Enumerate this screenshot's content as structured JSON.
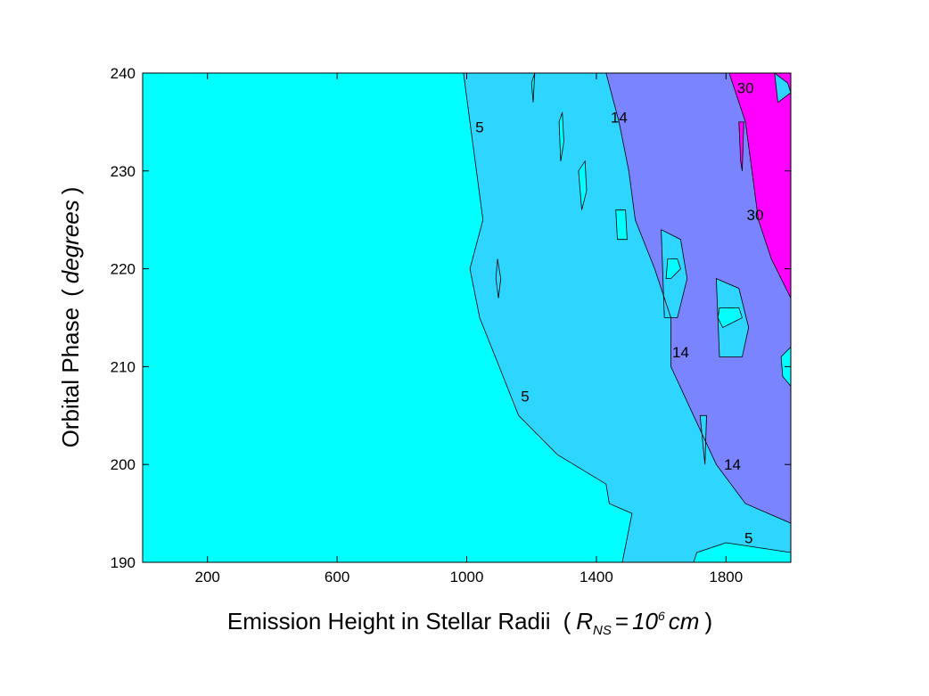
{
  "chart_data": {
    "type": "contour",
    "xlabel": {
      "main": "Emission Height in Stellar Radii",
      "paren_open": "(",
      "r_symbol": "R",
      "r_subscript": "NS",
      "equals": "=",
      "base": "10",
      "exponent": "6",
      "unit": "cm",
      "paren_close": ")"
    },
    "ylabel": {
      "main": "Orbital Phase",
      "paren_open": "(",
      "unit": "degrees",
      "paren_close": ")"
    },
    "xlim": [
      0,
      2000
    ],
    "ylim": [
      190,
      240
    ],
    "xticks": [
      200,
      600,
      1000,
      1400,
      1800
    ],
    "yticks": [
      190,
      200,
      210,
      220,
      230,
      240
    ],
    "grid": false,
    "colors": {
      "lt5": "#00ffff",
      "5to14": "#2dd5ff",
      "14to30": "#7a84ff",
      "gt30": "#ff00ff",
      "line": "#000000"
    },
    "regions": [
      {
        "level": "5to14",
        "points": [
          [
            1000,
            240
          ],
          [
            1520,
            240
          ],
          [
            1480,
            190
          ],
          [
            0,
            0
          ]
        ]
      },
      {
        "level": "14to30",
        "points": [
          [
            1450,
            240
          ],
          [
            2000,
            240
          ],
          [
            2000,
            194
          ],
          [
            1760,
            200
          ],
          [
            1620,
            215
          ],
          [
            1450,
            240
          ]
        ]
      },
      {
        "level": "gt30",
        "points": [
          [
            1830,
            240
          ],
          [
            2000,
            240
          ],
          [
            2000,
            217
          ],
          [
            1860,
            228
          ]
        ]
      }
    ],
    "boundaries": {
      "c5_main": [
        [
          990,
          240
        ],
        [
          1010,
          235
        ],
        [
          1030,
          230
        ],
        [
          1050,
          225
        ],
        [
          1010,
          220
        ],
        [
          1040,
          215
        ],
        [
          1100,
          210
        ],
        [
          1160,
          205
        ],
        [
          1280,
          201
        ],
        [
          1430,
          198
        ],
        [
          1440,
          196
        ],
        [
          1510,
          195
        ],
        [
          1480,
          190
        ]
      ],
      "c14_main": [
        [
          1430,
          240
        ],
        [
          1470,
          235
        ],
        [
          1500,
          230
        ],
        [
          1520,
          225
        ],
        [
          1580,
          220
        ],
        [
          1630,
          215
        ],
        [
          1630,
          210
        ],
        [
          1700,
          205
        ],
        [
          1770,
          200
        ],
        [
          1860,
          196
        ],
        [
          2000,
          194
        ]
      ],
      "c30_main": [
        [
          1810,
          240
        ],
        [
          1860,
          235
        ],
        [
          1880,
          230
        ],
        [
          1900,
          225
        ],
        [
          1940,
          221
        ],
        [
          2000,
          217
        ]
      ],
      "c5_bottom": [
        [
          1700,
          190
        ],
        [
          1710,
          191
        ],
        [
          1800,
          192
        ],
        [
          2000,
          191
        ]
      ]
    },
    "islands": [
      {
        "level": "5to14",
        "points": [
          [
            1095,
            221
          ],
          [
            1105,
            219
          ],
          [
            1098,
            217
          ],
          [
            1090,
            219
          ]
        ]
      },
      {
        "level": "lt5",
        "points": [
          [
            1200,
            239
          ],
          [
            1210,
            240
          ],
          [
            1205,
            237
          ]
        ]
      },
      {
        "level": "lt5",
        "points": [
          [
            1285,
            235
          ],
          [
            1295,
            236
          ],
          [
            1300,
            233
          ],
          [
            1290,
            231
          ]
        ]
      },
      {
        "level": "lt5",
        "points": [
          [
            1345,
            230
          ],
          [
            1365,
            231
          ],
          [
            1370,
            228
          ],
          [
            1355,
            226
          ]
        ]
      },
      {
        "level": "lt5",
        "points": [
          [
            1460,
            226
          ],
          [
            1490,
            226
          ],
          [
            1495,
            223
          ],
          [
            1465,
            223
          ]
        ]
      },
      {
        "level": "5to14",
        "points": [
          [
            1600,
            224
          ],
          [
            1660,
            223
          ],
          [
            1680,
            219
          ],
          [
            1650,
            215
          ],
          [
            1610,
            215
          ]
        ]
      },
      {
        "level": "lt5",
        "points": [
          [
            1620,
            221
          ],
          [
            1650,
            221
          ],
          [
            1660,
            220
          ],
          [
            1630,
            219
          ],
          [
            1615,
            219
          ]
        ]
      },
      {
        "level": "5to14",
        "points": [
          [
            1770,
            219
          ],
          [
            1840,
            218
          ],
          [
            1870,
            214
          ],
          [
            1850,
            211
          ],
          [
            1780,
            211
          ]
        ]
      },
      {
        "level": "lt5",
        "points": [
          [
            1780,
            216
          ],
          [
            1840,
            216
          ],
          [
            1850,
            215
          ],
          [
            1790,
            214
          ],
          [
            1775,
            215
          ]
        ]
      },
      {
        "level": "lt5",
        "points": [
          [
            1970,
            211
          ],
          [
            2000,
            212
          ],
          [
            2000,
            208
          ],
          [
            1975,
            209
          ]
        ]
      },
      {
        "level": "5to14",
        "points": [
          [
            1720,
            205
          ],
          [
            1740,
            205
          ],
          [
            1735,
            200
          ]
        ]
      },
      {
        "level": "gt30",
        "points": [
          [
            1840,
            235
          ],
          [
            1855,
            235
          ],
          [
            1850,
            230
          ],
          [
            1845,
            231
          ]
        ]
      },
      {
        "level": "5to14",
        "points": [
          [
            1950,
            240
          ],
          [
            1990,
            239
          ],
          [
            2000,
            238
          ],
          [
            1960,
            237
          ]
        ]
      }
    ],
    "labels": [
      {
        "text": "5",
        "x": 1040,
        "y": 234.5
      },
      {
        "text": "5",
        "x": 1180,
        "y": 207
      },
      {
        "text": "5",
        "x": 1870,
        "y": 192.5
      },
      {
        "text": "14",
        "x": 1470,
        "y": 235.5
      },
      {
        "text": "14",
        "x": 1660,
        "y": 211.5
      },
      {
        "text": "14",
        "x": 1820,
        "y": 200
      },
      {
        "text": "30",
        "x": 1860,
        "y": 238.5
      },
      {
        "text": "30",
        "x": 1890,
        "y": 225.5
      }
    ]
  }
}
